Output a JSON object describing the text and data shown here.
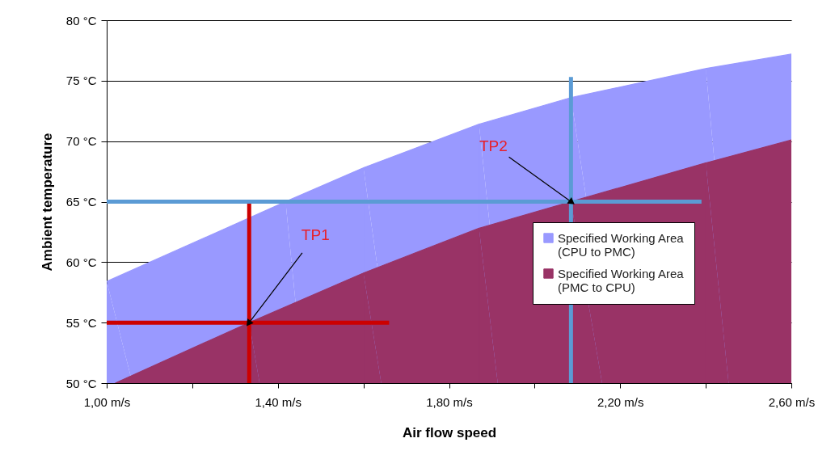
{
  "chart_data": {
    "type": "area",
    "xlabel": "Air flow speed",
    "ylabel": "Ambient temperature",
    "xlim": [
      1.0,
      2.6
    ],
    "ylim": [
      50,
      80
    ],
    "xticks": [
      {
        "value": 1.0,
        "label": "1,00 m/s"
      },
      {
        "value": 1.2,
        "label": null
      },
      {
        "value": 1.4,
        "label": "1,40 m/s"
      },
      {
        "value": 1.6,
        "label": null
      },
      {
        "value": 1.8,
        "label": "1,80 m/s"
      },
      {
        "value": 2.0,
        "label": null
      },
      {
        "value": 2.2,
        "label": "2,20 m/s"
      },
      {
        "value": 2.4,
        "label": null
      },
      {
        "value": 2.6,
        "label": "2,60 m/s"
      }
    ],
    "yticks": [
      {
        "value": 50,
        "label": "50 °C"
      },
      {
        "value": 55,
        "label": "55 °C"
      },
      {
        "value": 60,
        "label": "60 °C"
      },
      {
        "value": 65,
        "label": "65 °C"
      },
      {
        "value": 70,
        "label": "70 °C"
      },
      {
        "value": 75,
        "label": "75 °C"
      },
      {
        "value": 80,
        "label": "80 °C"
      }
    ],
    "grid": "y",
    "legend": "right",
    "series": [
      {
        "name": "Specified Working Area (CPU to PMC)",
        "type": "area",
        "color": "#9999ff",
        "x": [
          1.0,
          1.418,
          1.6,
          1.87,
          2.085,
          2.4,
          2.6
        ],
        "values": [
          58.4,
          65,
          67.8,
          71.4,
          73.6,
          76.0,
          77.2
        ]
      },
      {
        "name": "Specified Working Area (PMC to CPU)",
        "type": "area",
        "color": "#993366",
        "x": [
          1.02,
          1.333,
          1.6,
          1.87,
          2.085,
          2.4,
          2.6
        ],
        "values": [
          50,
          55,
          59.1,
          62.8,
          65,
          68.2,
          70.1
        ]
      },
      {
        "type": "line",
        "color": "#cc0000",
        "x": [
          1.0,
          1.66
        ],
        "values": [
          55,
          55
        ]
      },
      {
        "type": "line",
        "color": "#cc0000",
        "x": [
          1.333,
          1.333
        ],
        "values": [
          50,
          65
        ]
      },
      {
        "type": "line",
        "color": "#5b9bd5",
        "x": [
          1.0,
          2.39
        ],
        "values": [
          65,
          65
        ]
      },
      {
        "type": "line",
        "color": "#5b9bd5",
        "x": [
          2.085,
          2.085
        ],
        "values": [
          50,
          75.3
        ]
      }
    ],
    "annotations": [
      {
        "text": "TP1",
        "x": 1.333,
        "y": 55
      },
      {
        "text": "TP2",
        "x": 2.085,
        "y": 65
      }
    ]
  }
}
